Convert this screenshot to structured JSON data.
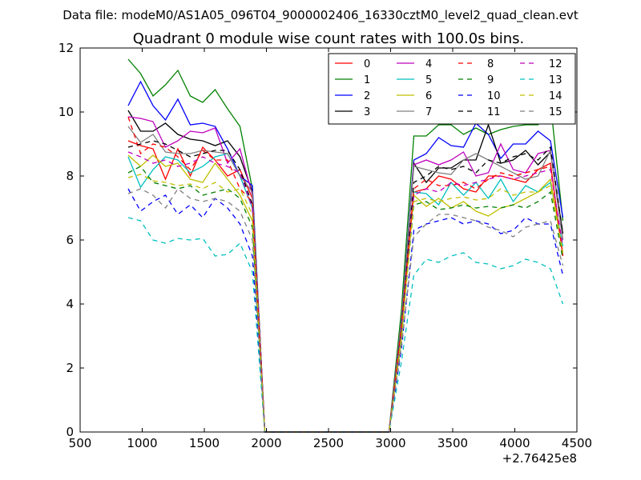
{
  "chart_data": {
    "type": "line",
    "suptitle": "Data file: modeM0/AS1A05_096T04_9000002406_16330cztM0_level2_quad_clean.evt",
    "title": "Quadrant 0 module wise count rates with 100.0s bins.",
    "xlabel": "",
    "ylabel": "",
    "x_offset_label": "+2.76425e8",
    "xlim": [
      500,
      4500
    ],
    "ylim": [
      0,
      12
    ],
    "xticks": [
      500,
      1000,
      1500,
      2000,
      2500,
      3000,
      3500,
      4000,
      4500
    ],
    "yticks": [
      0,
      2,
      4,
      6,
      8,
      10,
      12
    ],
    "legend_position": "upper-right",
    "x": [
      887,
      987,
      1087,
      1187,
      1287,
      1387,
      1487,
      1587,
      1687,
      1787,
      1887,
      1987,
      2087,
      2187,
      2287,
      2387,
      2487,
      2587,
      2687,
      2787,
      2887,
      2987,
      3087,
      3187,
      3287,
      3387,
      3487,
      3587,
      3687,
      3787,
      3887,
      3987,
      4087,
      4187,
      4287,
      4387
    ],
    "series": [
      {
        "name": "0",
        "color": "#ff0000",
        "dash": "solid",
        "values": [
          9.1,
          8.95,
          8.85,
          7.9,
          8.85,
          8.0,
          8.9,
          8.5,
          8.0,
          8.2,
          7.3,
          0,
          0,
          0,
          0,
          0,
          0,
          0,
          0,
          0,
          0,
          0,
          3.2,
          7.5,
          7.6,
          8.0,
          7.9,
          7.6,
          7.5,
          8.0,
          8.0,
          7.9,
          7.8,
          8.2,
          8.4,
          5.5
        ]
      },
      {
        "name": "1",
        "color": "#008000",
        "dash": "solid",
        "values": [
          11.65,
          11.2,
          10.5,
          10.85,
          11.3,
          10.5,
          10.3,
          10.7,
          10.1,
          9.55,
          7.6,
          0,
          0,
          0,
          0,
          0,
          0,
          0,
          0,
          0,
          0,
          0,
          3.8,
          9.25,
          9.25,
          9.6,
          9.6,
          9.3,
          9.5,
          9.3,
          9.45,
          9.55,
          9.6,
          9.6,
          10.3,
          6.6
        ]
      },
      {
        "name": "2",
        "color": "#0000ff",
        "dash": "solid",
        "values": [
          10.2,
          10.95,
          10.2,
          9.75,
          10.4,
          9.6,
          9.65,
          9.55,
          8.85,
          8.0,
          7.7,
          0,
          0,
          0,
          0,
          0,
          0,
          0,
          0,
          0,
          0,
          0,
          3.5,
          8.5,
          8.7,
          9.2,
          8.95,
          8.9,
          9.65,
          9.3,
          8.55,
          9.0,
          9.0,
          9.4,
          9.1,
          6.7
        ]
      },
      {
        "name": "3",
        "color": "#000000",
        "dash": "solid",
        "values": [
          10.05,
          9.4,
          9.4,
          9.65,
          9.3,
          9.15,
          9.1,
          8.95,
          9.1,
          8.6,
          7.5,
          0,
          0,
          0,
          0,
          0,
          0,
          0,
          0,
          0,
          0,
          0,
          3.4,
          8.4,
          7.8,
          8.25,
          8.25,
          8.5,
          8.5,
          9.6,
          8.4,
          8.5,
          8.8,
          8.35,
          8.75,
          6.2
        ]
      },
      {
        "name": "4",
        "color": "#bf00bf",
        "dash": "solid",
        "values": [
          9.85,
          9.8,
          9.7,
          8.9,
          9.1,
          9.4,
          9.35,
          9.5,
          8.4,
          8.85,
          7.4,
          0,
          0,
          0,
          0,
          0,
          0,
          0,
          0,
          0,
          0,
          0,
          3.3,
          8.35,
          8.5,
          8.35,
          8.5,
          8.75,
          8.0,
          8.1,
          9.0,
          8.2,
          8.1,
          8.7,
          8.8,
          6.0
        ]
      },
      {
        "name": "5",
        "color": "#00bfbf",
        "dash": "solid",
        "values": [
          8.6,
          7.65,
          8.2,
          8.6,
          8.5,
          8.1,
          8.3,
          8.6,
          8.7,
          8.0,
          7.0,
          0,
          0,
          0,
          0,
          0,
          0,
          0,
          0,
          0,
          0,
          0,
          3.0,
          7.5,
          7.45,
          7.1,
          7.8,
          7.4,
          7.8,
          7.3,
          7.9,
          7.2,
          7.7,
          7.5,
          7.8,
          5.8
        ]
      },
      {
        "name": "6",
        "color": "#bfbf00",
        "dash": "solid",
        "values": [
          8.65,
          8.3,
          8.65,
          8.3,
          8.4,
          7.9,
          7.8,
          8.4,
          7.9,
          7.4,
          6.6,
          0,
          0,
          0,
          0,
          0,
          0,
          0,
          0,
          0,
          0,
          0,
          2.9,
          7.4,
          7.05,
          7.3,
          7.0,
          7.2,
          6.9,
          6.75,
          7.0,
          7.1,
          7.3,
          7.5,
          7.9,
          5.6
        ]
      },
      {
        "name": "7",
        "color": "#808080",
        "dash": "solid",
        "values": [
          9.55,
          9.05,
          9.3,
          8.75,
          8.7,
          8.7,
          8.8,
          8.75,
          8.7,
          8.0,
          7.5,
          0,
          0,
          0,
          0,
          0,
          0,
          0,
          0,
          0,
          0,
          0,
          3.5,
          8.3,
          8.2,
          8.1,
          8.05,
          8.5,
          8.7,
          8.5,
          8.3,
          8.1,
          7.9,
          8.0,
          8.8,
          6.0
        ]
      },
      {
        "name": "8",
        "color": "#ff0000",
        "dash": "dashed",
        "values": [
          9.85,
          8.7,
          9.0,
          8.9,
          8.6,
          8.2,
          8.8,
          8.5,
          8.5,
          7.6,
          7.2,
          0,
          0,
          0,
          0,
          0,
          0,
          0,
          0,
          0,
          0,
          0,
          3.3,
          7.6,
          7.9,
          7.7,
          7.7,
          7.8,
          7.6,
          7.9,
          8.1,
          8.0,
          8.1,
          8.2,
          8.3,
          5.5
        ]
      },
      {
        "name": "9",
        "color": "#008000",
        "dash": "dashed",
        "values": [
          8.1,
          8.3,
          7.8,
          7.7,
          7.6,
          7.7,
          7.4,
          7.5,
          7.6,
          7.3,
          6.4,
          0,
          0,
          0,
          0,
          0,
          0,
          0,
          0,
          0,
          0,
          0,
          3.0,
          7.1,
          7.2,
          6.95,
          7.0,
          7.1,
          7.0,
          7.05,
          7.0,
          7.1,
          7.0,
          7.2,
          7.5,
          5.4
        ]
      },
      {
        "name": "10",
        "color": "#0000ff",
        "dash": "dashed",
        "values": [
          7.6,
          6.9,
          7.2,
          7.4,
          6.8,
          7.1,
          6.7,
          7.3,
          7.0,
          6.5,
          5.5,
          0,
          0,
          0,
          0,
          0,
          0,
          0,
          0,
          0,
          0,
          0,
          2.6,
          6.3,
          6.5,
          6.6,
          6.7,
          6.5,
          6.6,
          6.5,
          6.2,
          6.3,
          6.7,
          6.5,
          6.5,
          4.9
        ]
      },
      {
        "name": "11",
        "color": "#000000",
        "dash": "dashed",
        "values": [
          8.9,
          9.0,
          9.1,
          9.0,
          8.8,
          8.6,
          8.7,
          8.8,
          8.8,
          8.2,
          7.1,
          0,
          0,
          0,
          0,
          0,
          0,
          0,
          0,
          0,
          0,
          0,
          3.2,
          7.8,
          8.0,
          8.3,
          8.2,
          8.3,
          8.1,
          8.5,
          8.4,
          8.6,
          8.7,
          8.5,
          8.9,
          6.2
        ]
      },
      {
        "name": "12",
        "color": "#bf00bf",
        "dash": "dashed",
        "values": [
          8.75,
          8.6,
          8.4,
          8.5,
          8.3,
          8.4,
          8.6,
          8.4,
          8.3,
          8.1,
          7.0,
          0,
          0,
          0,
          0,
          0,
          0,
          0,
          0,
          0,
          0,
          0,
          3.1,
          7.4,
          7.6,
          7.5,
          7.8,
          7.7,
          7.8,
          7.9,
          8.0,
          7.9,
          8.0,
          8.1,
          8.2,
          5.8
        ]
      },
      {
        "name": "13",
        "color": "#00bfbf",
        "dash": "dashed",
        "values": [
          6.7,
          6.6,
          6.0,
          5.9,
          6.05,
          6.0,
          6.05,
          5.5,
          5.55,
          5.9,
          5.0,
          0,
          0,
          0,
          0,
          0,
          0,
          0,
          0,
          0,
          0,
          0,
          2.2,
          4.9,
          5.4,
          5.3,
          5.5,
          5.6,
          5.3,
          5.25,
          5.1,
          5.2,
          5.4,
          5.3,
          5.1,
          4.0
        ]
      },
      {
        "name": "14",
        "color": "#bfbf00",
        "dash": "dashed",
        "values": [
          7.95,
          8.05,
          7.85,
          7.8,
          7.7,
          7.75,
          7.6,
          7.8,
          7.5,
          7.6,
          6.8,
          0,
          0,
          0,
          0,
          0,
          0,
          0,
          0,
          0,
          0,
          0,
          3.0,
          7.2,
          7.3,
          7.2,
          7.3,
          7.35,
          7.25,
          7.3,
          7.6,
          7.4,
          7.5,
          7.5,
          7.7,
          5.6
        ]
      },
      {
        "name": "15",
        "color": "#808080",
        "dash": "dashed",
        "values": [
          7.45,
          7.6,
          7.4,
          7.0,
          7.6,
          7.3,
          7.2,
          7.3,
          7.2,
          6.9,
          6.0,
          0,
          0,
          0,
          0,
          0,
          0,
          0,
          0,
          0,
          0,
          0,
          2.7,
          6.1,
          6.5,
          6.8,
          6.8,
          6.7,
          6.6,
          6.4,
          6.3,
          6.1,
          6.4,
          6.5,
          6.6,
          5.2
        ]
      }
    ]
  }
}
